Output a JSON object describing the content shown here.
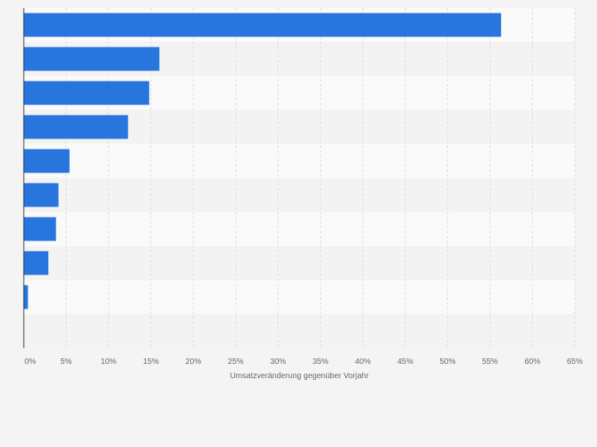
{
  "chart_data": {
    "type": "bar",
    "orientation": "horizontal",
    "categories": [
      "",
      "",
      "",
      "",
      "",
      "",
      "",
      "",
      "",
      ""
    ],
    "values": [
      56.3,
      16.0,
      14.8,
      12.3,
      5.4,
      4.1,
      3.8,
      2.9,
      0.5,
      0
    ],
    "xlabel": "Umsatzveränderung gegenüber Vorjahr",
    "xlim": [
      0,
      65
    ],
    "xticks": [
      0,
      5,
      10,
      15,
      20,
      25,
      30,
      35,
      40,
      45,
      50,
      55,
      60,
      65
    ],
    "tick_suffix": "%",
    "grid": true,
    "legend": "none",
    "colors": {
      "bar": "#2876dd",
      "band_light": "#fafafa",
      "band_dark": "#f3f3f3",
      "grid": "#d9d9d9",
      "axis": "#333333",
      "tick_text": "#666666",
      "background": "#f4f4f4"
    }
  }
}
